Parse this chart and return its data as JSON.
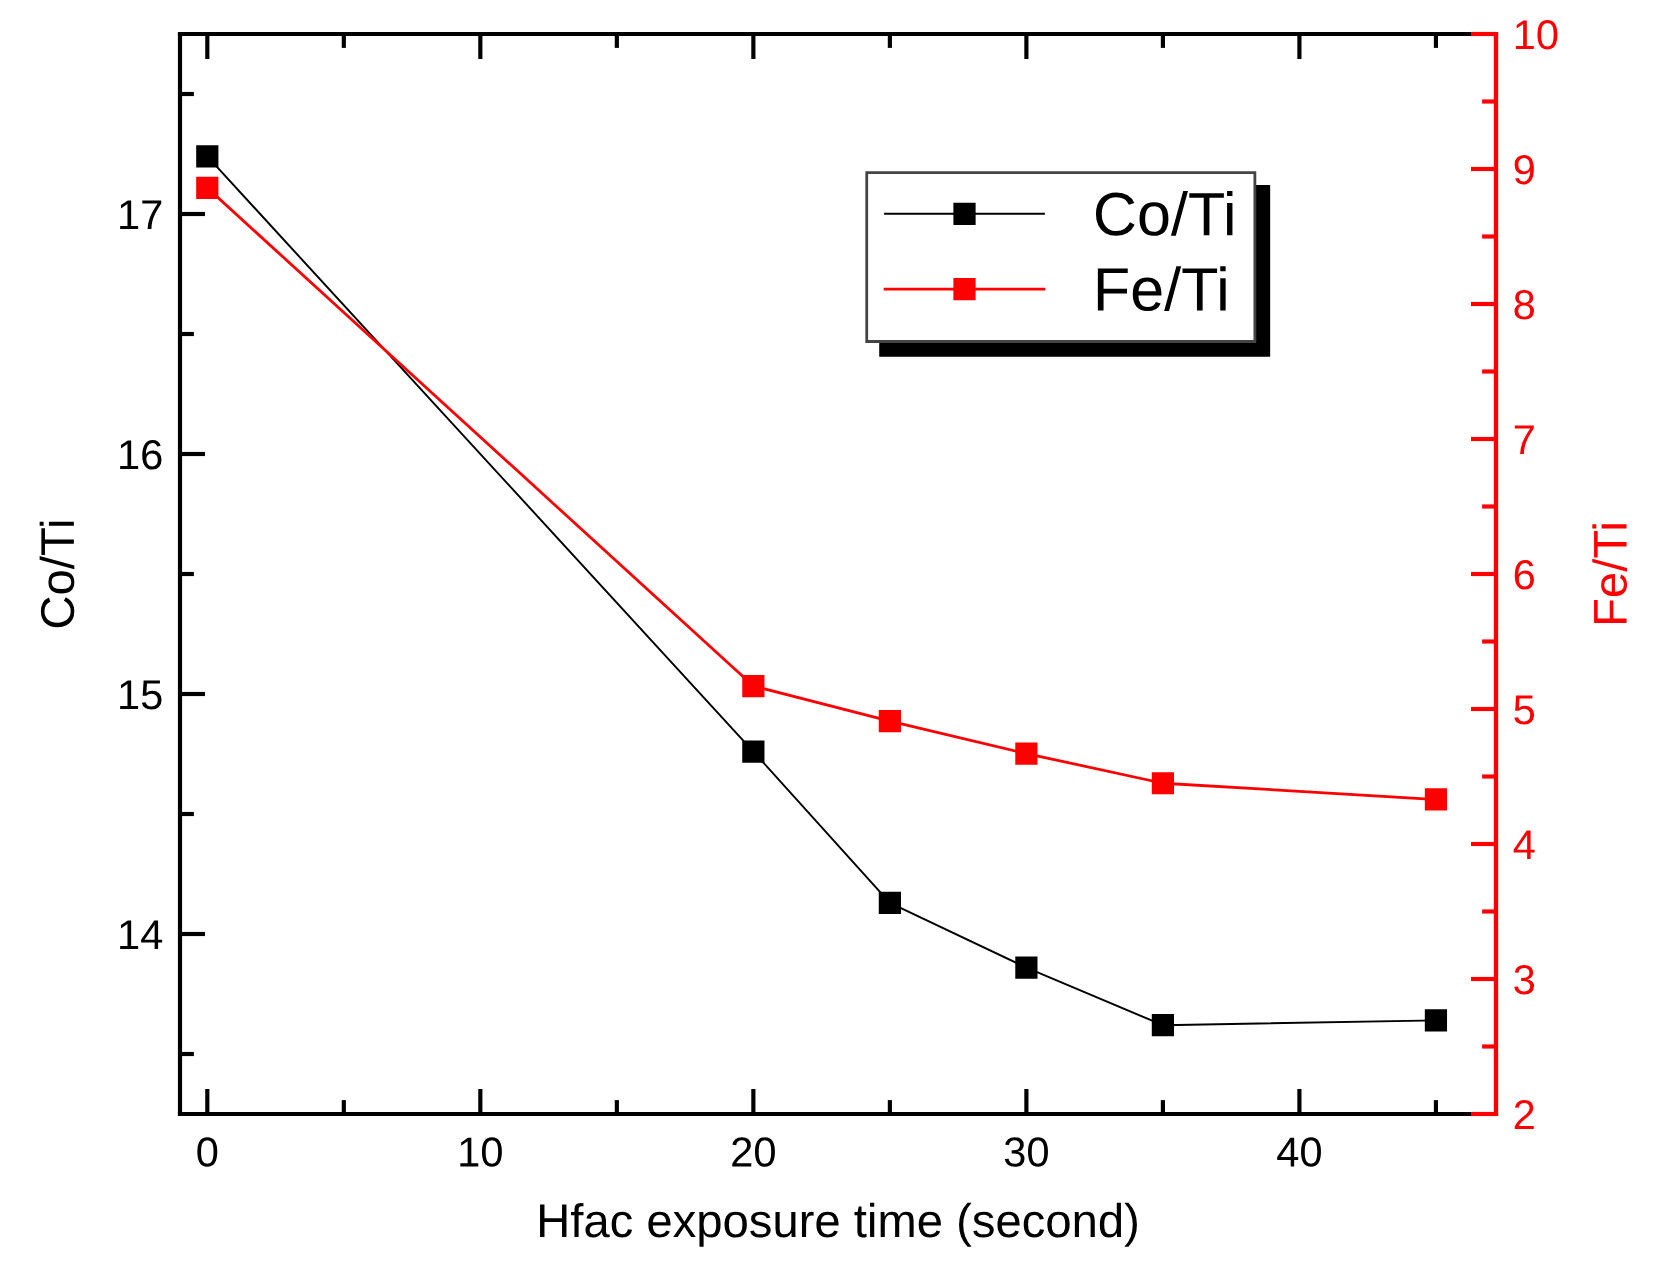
{
  "chart_data": {
    "type": "line",
    "xlabel": "Hfac exposure time (second)",
    "ylabel": "Co/Ti",
    "y2label": "Fe/Ti",
    "xlim": [
      -1,
      47.2
    ],
    "ylim": [
      13.25,
      17.75
    ],
    "y2lim": [
      2,
      10
    ],
    "xticks": [
      0,
      {
        "value": 5,
        "label": null
      },
      10,
      {
        "value": 15,
        "label": null
      },
      20,
      {
        "value": 25,
        "label": null
      },
      30,
      {
        "value": 35,
        "label": null
      },
      40,
      {
        "value": 45,
        "label": null
      }
    ],
    "yticks": [
      {
        "value": 13.5,
        "label": null
      },
      14,
      {
        "value": 14.5,
        "label": null
      },
      15,
      {
        "value": 15.5,
        "label": null
      },
      16,
      {
        "value": 16.5,
        "label": null
      },
      17,
      {
        "value": 17.5,
        "label": null
      }
    ],
    "y2ticks": [
      2,
      {
        "value": 2.5,
        "label": null
      },
      3,
      {
        "value": 3.5,
        "label": null
      },
      4,
      {
        "value": 4.5,
        "label": null
      },
      5,
      {
        "value": 5.5,
        "label": null
      },
      6,
      {
        "value": 6.5,
        "label": null
      },
      7,
      {
        "value": 7.5,
        "label": null
      },
      8,
      {
        "value": 8.5,
        "label": null
      },
      9,
      {
        "value": 9.5,
        "label": null
      },
      10
    ],
    "marker": "square",
    "line_style": "solid",
    "legend": "top right",
    "grid": false,
    "series": [
      {
        "name": "Co/Ti",
        "color": "#000000",
        "x": [
          0,
          20,
          25,
          30,
          35,
          45
        ],
        "values": [
          17.24,
          14.76,
          14.13,
          13.86,
          13.62,
          13.64
        ]
      },
      {
        "name": "Fe/Ti",
        "color": "#ff0000",
        "axis": "y2",
        "x": [
          0,
          20,
          25,
          30,
          35,
          45
        ],
        "values": [
          8.86,
          5.17,
          4.91,
          4.67,
          4.45,
          4.33
        ]
      }
    ]
  }
}
